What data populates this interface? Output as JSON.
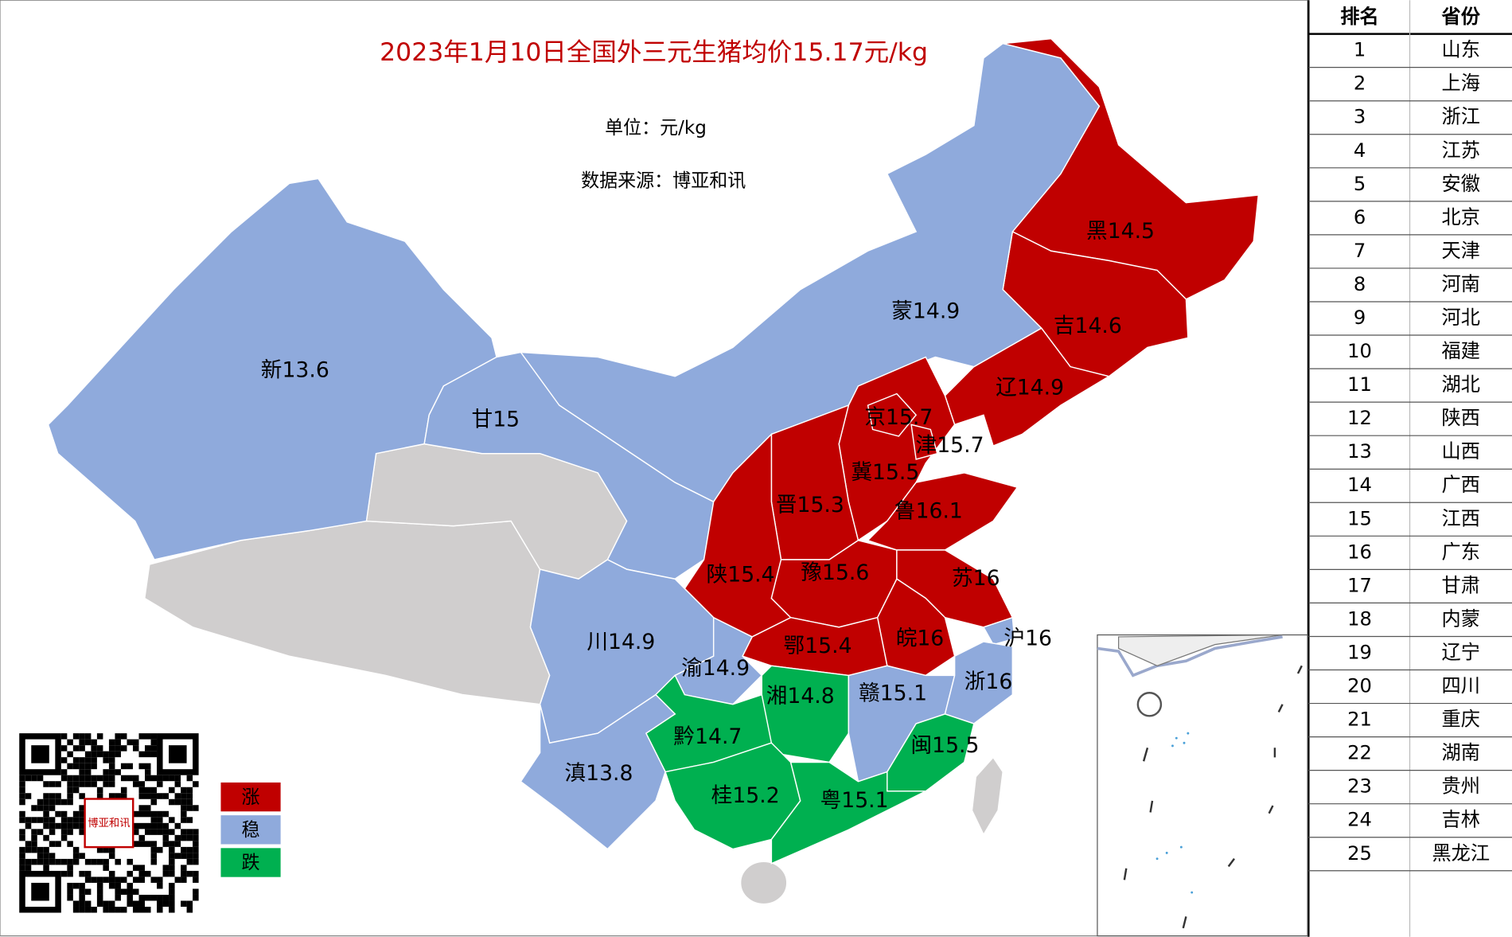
{
  "header": {
    "title": "2023年1月10日全国外三元生猪均价15.17元/kg",
    "unit": "单位：元/kg",
    "source": "数据来源：博亚和讯"
  },
  "legend": [
    {
      "label": "涨",
      "color": "#c00000"
    },
    {
      "label": "稳",
      "color": "#8faadc"
    },
    {
      "label": "跌",
      "color": "#00b050"
    }
  ],
  "no_data_color": "#d0cece",
  "provinces": [
    {
      "abbr": "黑",
      "value": 14.5,
      "status": 0
    },
    {
      "abbr": "吉",
      "value": 14.6,
      "status": 0
    },
    {
      "abbr": "辽",
      "value": 14.9,
      "status": 0
    },
    {
      "abbr": "蒙",
      "value": 14.9,
      "status": 1
    },
    {
      "abbr": "新",
      "value": 13.6,
      "status": 1
    },
    {
      "abbr": "甘",
      "value": 15,
      "status": 1
    },
    {
      "abbr": "冀",
      "value": 15.5,
      "status": 0
    },
    {
      "abbr": "京",
      "value": 15.7,
      "status": 0
    },
    {
      "abbr": "津",
      "value": 15.7,
      "status": 0
    },
    {
      "abbr": "晋",
      "value": 15.3,
      "status": 0
    },
    {
      "abbr": "鲁",
      "value": 16.1,
      "status": 0
    },
    {
      "abbr": "陕",
      "value": 15.4,
      "status": 0
    },
    {
      "abbr": "豫",
      "value": 15.6,
      "status": 0
    },
    {
      "abbr": "苏",
      "value": 16,
      "status": 0
    },
    {
      "abbr": "皖",
      "value": 16,
      "status": 0
    },
    {
      "abbr": "沪",
      "value": 16,
      "status": 1
    },
    {
      "abbr": "鄂",
      "value": 15.4,
      "status": 0
    },
    {
      "abbr": "川",
      "value": 14.9,
      "status": 1
    },
    {
      "abbr": "渝",
      "value": 14.9,
      "status": 1
    },
    {
      "abbr": "湘",
      "value": 14.8,
      "status": 2
    },
    {
      "abbr": "赣",
      "value": 15.1,
      "status": 1
    },
    {
      "abbr": "浙",
      "value": 16,
      "status": 1
    },
    {
      "abbr": "黔",
      "value": 14.7,
      "status": 2
    },
    {
      "abbr": "滇",
      "value": 13.8,
      "status": 1
    },
    {
      "abbr": "闽",
      "value": 15.5,
      "status": 2
    },
    {
      "abbr": "桂",
      "value": 15.2,
      "status": 2
    },
    {
      "abbr": "粤",
      "value": 15.1,
      "status": 2
    }
  ],
  "qr_seal": "博亚和讯",
  "table": {
    "header": [
      "排名",
      "省份"
    ],
    "rows": [
      [
        1,
        "山东"
      ],
      [
        2,
        "上海"
      ],
      [
        3,
        "浙江"
      ],
      [
        4,
        "江苏"
      ],
      [
        5,
        "安徽"
      ],
      [
        6,
        "北京"
      ],
      [
        7,
        "天津"
      ],
      [
        8,
        "河南"
      ],
      [
        9,
        "河北"
      ],
      [
        10,
        "福建"
      ],
      [
        11,
        "湖北"
      ],
      [
        12,
        "陕西"
      ],
      [
        13,
        "山西"
      ],
      [
        14,
        "广西"
      ],
      [
        15,
        "江西"
      ],
      [
        16,
        "广东"
      ],
      [
        17,
        "甘肃"
      ],
      [
        18,
        "内蒙"
      ],
      [
        19,
        "辽宁"
      ],
      [
        20,
        "四川"
      ],
      [
        21,
        "重庆"
      ],
      [
        22,
        "湖南"
      ],
      [
        23,
        "贵州"
      ],
      [
        24,
        "吉林"
      ],
      [
        25,
        "黑龙江"
      ]
    ]
  }
}
